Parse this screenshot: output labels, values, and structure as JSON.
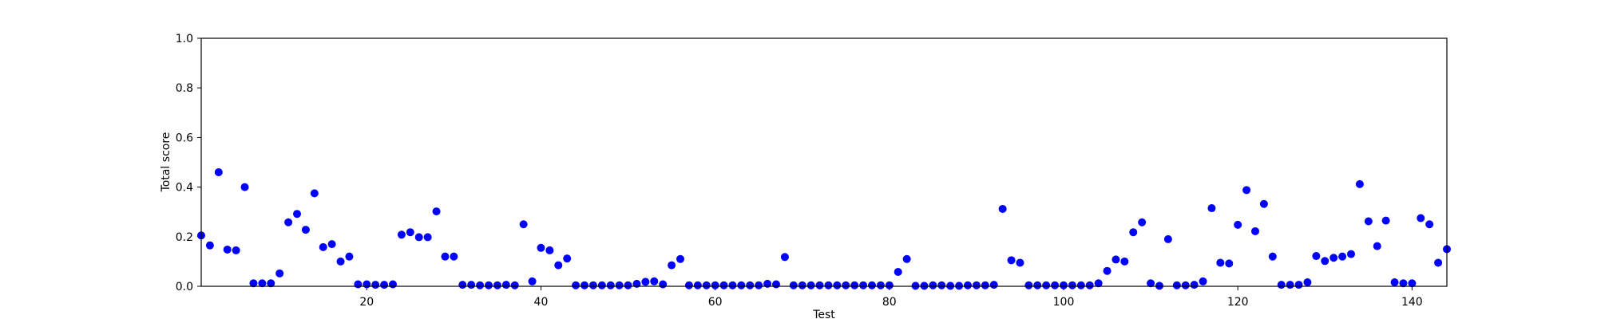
{
  "chart_data": {
    "type": "scatter",
    "title": "",
    "xlabel": "Test",
    "ylabel": "Total score",
    "xlim": [
      1,
      144
    ],
    "ylim": [
      0,
      1.0
    ],
    "x_ticks": [
      20,
      40,
      60,
      80,
      100,
      120,
      140
    ],
    "y_ticks": [
      0.0,
      0.2,
      0.4,
      0.6,
      0.8,
      1.0
    ],
    "x_tick_labels": [
      "20",
      "40",
      "60",
      "80",
      "100",
      "120",
      "140"
    ],
    "y_tick_labels": [
      "0.0",
      "0.2",
      "0.4",
      "0.6",
      "0.8",
      "1.0"
    ],
    "grid": false,
    "marker_color": "#0000ff",
    "series": [
      {
        "x": [
          1,
          2,
          3,
          4,
          5,
          6,
          7,
          8,
          9,
          10,
          11,
          12,
          13,
          14,
          15,
          16,
          17,
          18,
          19,
          20,
          21,
          22,
          23,
          24,
          25,
          26,
          27,
          28,
          29,
          30,
          31,
          32,
          33,
          34,
          35,
          36,
          37,
          38,
          39,
          40,
          41,
          42,
          43,
          44,
          45,
          46,
          47,
          48,
          49,
          50,
          51,
          52,
          53,
          54,
          55,
          56,
          57,
          58,
          59,
          60,
          61,
          62,
          63,
          64,
          65,
          66,
          67,
          68,
          69,
          70,
          71,
          72,
          73,
          74,
          75,
          76,
          77,
          78,
          79,
          80,
          81,
          82,
          83,
          84,
          85,
          86,
          87,
          88,
          89,
          90,
          91,
          92,
          93,
          94,
          95,
          96,
          97,
          98,
          99,
          100,
          101,
          102,
          103,
          104,
          105,
          106,
          107,
          108,
          109,
          110,
          111,
          112,
          113,
          114,
          115,
          116,
          117,
          118,
          119,
          120,
          121,
          122,
          123,
          124,
          125,
          126,
          127,
          128,
          129,
          130,
          131,
          132,
          133,
          134,
          135,
          136,
          137,
          138,
          139,
          140,
          141,
          142,
          143,
          144
        ],
        "y": [
          0.205,
          0.165,
          0.46,
          0.148,
          0.145,
          0.4,
          0.012,
          0.012,
          0.012,
          0.052,
          0.258,
          0.292,
          0.228,
          0.375,
          0.158,
          0.17,
          0.1,
          0.12,
          0.008,
          0.008,
          0.006,
          0.006,
          0.008,
          0.208,
          0.218,
          0.198,
          0.198,
          0.302,
          0.12,
          0.12,
          0.006,
          0.006,
          0.004,
          0.004,
          0.004,
          0.006,
          0.004,
          0.25,
          0.02,
          0.155,
          0.145,
          0.085,
          0.112,
          0.004,
          0.004,
          0.004,
          0.004,
          0.004,
          0.004,
          0.004,
          0.01,
          0.018,
          0.02,
          0.008,
          0.085,
          0.11,
          0.004,
          0.004,
          0.004,
          0.004,
          0.004,
          0.004,
          0.004,
          0.004,
          0.004,
          0.01,
          0.008,
          0.118,
          0.004,
          0.004,
          0.004,
          0.004,
          0.004,
          0.004,
          0.004,
          0.004,
          0.004,
          0.004,
          0.004,
          0.004,
          0.058,
          0.11,
          0.002,
          0.002,
          0.004,
          0.004,
          0.002,
          0.002,
          0.004,
          0.004,
          0.004,
          0.006,
          0.312,
          0.105,
          0.095,
          0.004,
          0.004,
          0.004,
          0.004,
          0.004,
          0.004,
          0.004,
          0.004,
          0.012,
          0.062,
          0.108,
          0.1,
          0.218,
          0.258,
          0.012,
          0.002,
          0.19,
          0.004,
          0.004,
          0.006,
          0.02,
          0.315,
          0.095,
          0.092,
          0.248,
          0.388,
          0.222,
          0.332,
          0.12,
          0.006,
          0.006,
          0.006,
          0.016,
          0.122,
          0.102,
          0.115,
          0.12,
          0.13,
          0.412,
          0.262,
          0.162,
          0.265,
          0.016,
          0.012,
          0.012,
          0.275,
          0.25,
          0.095,
          0.15
        ]
      }
    ]
  }
}
